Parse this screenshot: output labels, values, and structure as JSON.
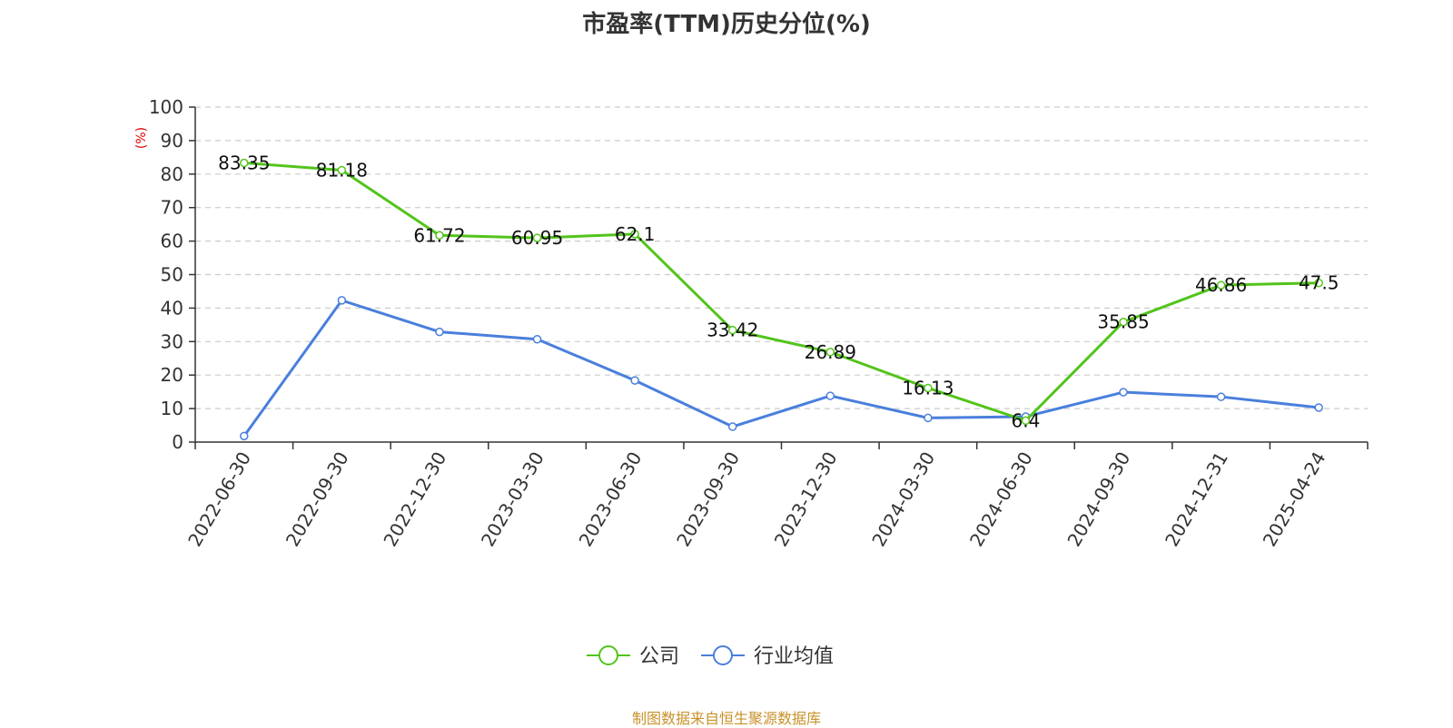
{
  "chart_data": {
    "type": "line",
    "title": "市盈率(TTM)历史分位(%)",
    "ylabel": "(%)",
    "xlabel": "",
    "ylim": [
      0,
      100
    ],
    "yticks": [
      0,
      10,
      20,
      30,
      40,
      50,
      60,
      70,
      80,
      90,
      100
    ],
    "grid": "horizontal dashed",
    "legend_position": "bottom-center",
    "categories": [
      "2022-06-30",
      "2022-09-30",
      "2022-12-30",
      "2023-03-30",
      "2023-06-30",
      "2023-09-30",
      "2023-12-30",
      "2024-03-30",
      "2024-06-30",
      "2024-09-30",
      "2024-12-31",
      "2025-04-24"
    ],
    "series": [
      {
        "name": "公司",
        "color": "#52c41a",
        "values": [
          83.35,
          81.18,
          61.72,
          60.95,
          62.1,
          33.42,
          26.89,
          16.13,
          6.4,
          35.85,
          46.86,
          47.5
        ],
        "labels": [
          "83.35",
          "81.18",
          "61.72",
          "60.95",
          "62.1",
          "33.42",
          "26.89",
          "16.13",
          "6.4",
          "35.85",
          "46.86",
          "47.5"
        ]
      },
      {
        "name": "行业均值",
        "color": "#4a7fdc",
        "values": [
          1.8,
          42.3,
          32.9,
          30.7,
          18.4,
          4.6,
          13.8,
          7.2,
          7.6,
          14.9,
          13.5,
          10.3
        ]
      }
    ]
  },
  "source_text": "制图数据来自恒生聚源数据库"
}
